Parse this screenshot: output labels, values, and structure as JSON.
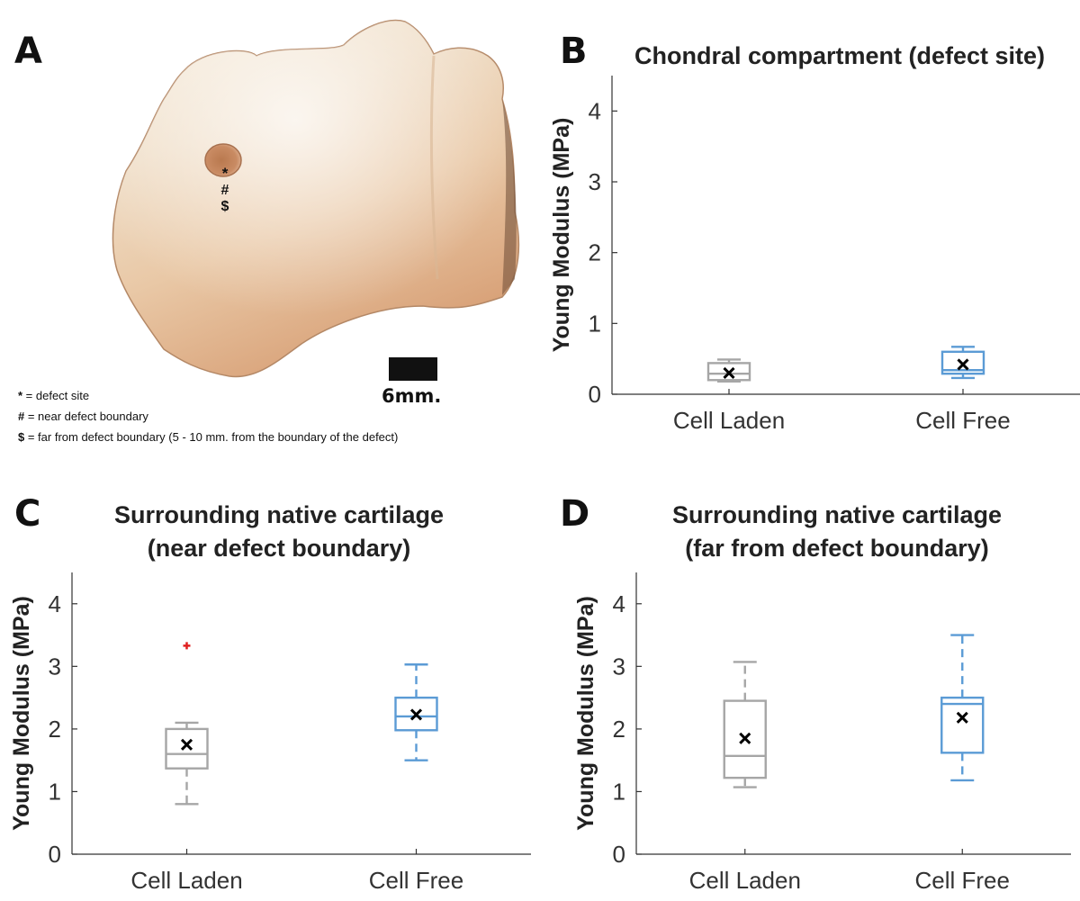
{
  "photo": {
    "panel_letter": "A",
    "defect_markers": [
      "*",
      "#",
      "$"
    ],
    "scale_bar_label": "6mm.",
    "legend": [
      {
        "symbol": "*",
        "text": " = defect site"
      },
      {
        "symbol": "#",
        "text": " = near defect boundary"
      },
      {
        "symbol": "$",
        "text": " = far from defect boundary (5 - 10 mm. from the boundary of the defect)"
      }
    ]
  },
  "colors": {
    "cell_laden": "#a6a6a6",
    "cell_free": "#5b9bd5",
    "outlier": "#e02020",
    "mean_marker": "#000000"
  },
  "chart_data": [
    {
      "panel_letter": "B",
      "type": "box",
      "title": [
        "Chondral compartment (defect site)"
      ],
      "ylabel": "Young Modulus (MPa)",
      "xlabel": "",
      "ylim": [
        0,
        4.5
      ],
      "yticks": [
        0,
        1,
        2,
        3,
        4
      ],
      "categories": [
        "Cell Laden",
        "Cell Free"
      ],
      "boxes": [
        {
          "category": "Cell Laden",
          "whisker_low": 0.18,
          "q1": 0.2,
          "median": 0.29,
          "q3": 0.44,
          "whisker_high": 0.49,
          "mean": 0.3,
          "outliers": []
        },
        {
          "category": "Cell Free",
          "whisker_low": 0.23,
          "q1": 0.29,
          "median": 0.34,
          "q3": 0.6,
          "whisker_high": 0.67,
          "mean": 0.42,
          "outliers": []
        }
      ]
    },
    {
      "panel_letter": "C",
      "type": "box",
      "title": [
        "Surrounding native cartilage",
        "(near defect boundary)"
      ],
      "ylabel": "Young Modulus (MPa)",
      "xlabel": "",
      "ylim": [
        0,
        4.5
      ],
      "yticks": [
        0,
        1,
        2,
        3,
        4
      ],
      "categories": [
        "Cell Laden",
        "Cell Free"
      ],
      "boxes": [
        {
          "category": "Cell Laden",
          "whisker_low": 0.8,
          "q1": 1.37,
          "median": 1.6,
          "q3": 2.0,
          "whisker_high": 2.1,
          "mean": 1.75,
          "outliers": [
            3.33
          ]
        },
        {
          "category": "Cell Free",
          "whisker_low": 1.5,
          "q1": 1.98,
          "median": 2.2,
          "q3": 2.5,
          "whisker_high": 3.03,
          "mean": 2.23,
          "outliers": []
        }
      ]
    },
    {
      "panel_letter": "D",
      "type": "box",
      "title": [
        "Surrounding native cartilage",
        "(far from defect boundary)"
      ],
      "ylabel": "Young Modulus (MPa)",
      "xlabel": "",
      "ylim": [
        0,
        4.5
      ],
      "yticks": [
        0,
        1,
        2,
        3,
        4
      ],
      "categories": [
        "Cell Laden",
        "Cell Free"
      ],
      "boxes": [
        {
          "category": "Cell Laden",
          "whisker_low": 1.07,
          "q1": 1.22,
          "median": 1.57,
          "q3": 2.45,
          "whisker_high": 3.07,
          "mean": 1.85,
          "outliers": []
        },
        {
          "category": "Cell Free",
          "whisker_low": 1.18,
          "q1": 1.62,
          "median": 2.4,
          "q3": 2.5,
          "whisker_high": 3.5,
          "mean": 2.18,
          "outliers": []
        }
      ]
    }
  ]
}
